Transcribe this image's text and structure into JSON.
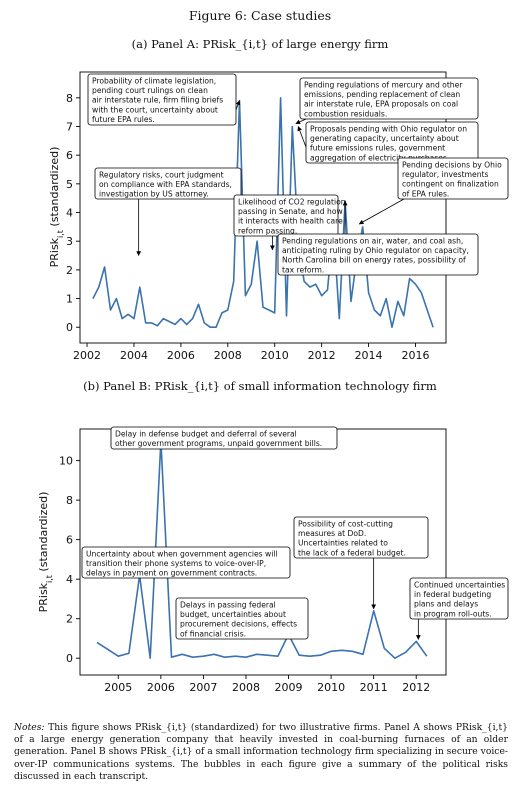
{
  "figure_title": "Figure 6: Case studies",
  "panel_a_title": "(a) Panel A: PRisk_{i,t} of large energy firm",
  "panel_b_title": "(b) Panel B: PRisk_{i,t} of small information technology firm",
  "notes_label": "Notes:",
  "notes_text": "This figure shows PRisk_{i,t} (standardized) for two illustrative firms. Panel A shows PRisk_{i,t} of a large energy generation company that heavily invested in coal-burning furnaces of an older generation. Panel B shows PRisk_{i,t} of a small information technology firm specializing in secure voice-over-IP communications systems. The bubbles in each figure give a summary of the political risks discussed in each transcript.",
  "colors": {
    "line": "#3b73ae",
    "axis": "#000000",
    "box_border": "#000000"
  },
  "chart_data": [
    {
      "type": "line",
      "ylabel": "PRisk_{i,t} (standardized)",
      "xlim": [
        2001.7,
        2017.3
      ],
      "ylim": [
        -0.55,
        8.9
      ],
      "xticks": [
        2002,
        2004,
        2006,
        2008,
        2010,
        2012,
        2014,
        2016
      ],
      "yticks": [
        0,
        1,
        2,
        3,
        4,
        5,
        6,
        7,
        8
      ],
      "series": [
        {
          "x": [
            2002.25,
            2002.5,
            2002.75,
            2003.0,
            2003.25,
            2003.5,
            2003.75,
            2004.0,
            2004.25,
            2004.5,
            2004.75,
            2005.0,
            2005.25,
            2005.5,
            2005.75,
            2006.0,
            2006.25,
            2006.5,
            2006.75,
            2007.0,
            2007.25,
            2007.5,
            2007.75,
            2008.0,
            2008.25,
            2008.5,
            2008.75,
            2009.0,
            2009.25,
            2009.5,
            2009.75,
            2010.0,
            2010.25,
            2010.5,
            2010.75,
            2011.0,
            2011.25,
            2011.5,
            2011.75,
            2012.0,
            2012.25,
            2012.5,
            2012.75,
            2013.0,
            2013.25,
            2013.5,
            2013.75,
            2014.0,
            2014.25,
            2014.5,
            2014.75,
            2015.0,
            2015.25,
            2015.5,
            2015.75,
            2016.0,
            2016.25,
            2016.5,
            2016.75
          ],
          "values": [
            1.0,
            1.4,
            2.1,
            0.6,
            1.0,
            0.3,
            0.45,
            0.3,
            1.4,
            0.15,
            0.15,
            0.05,
            0.3,
            0.2,
            0.1,
            0.3,
            0.1,
            0.3,
            0.8,
            0.15,
            0.0,
            0.0,
            0.5,
            0.6,
            1.6,
            7.9,
            1.1,
            1.5,
            3.0,
            0.7,
            0.6,
            0.5,
            8.0,
            0.4,
            7.0,
            3.0,
            1.6,
            1.4,
            1.5,
            1.1,
            1.3,
            3.5,
            0.3,
            4.4,
            0.9,
            2.4,
            3.5,
            1.2,
            0.6,
            0.4,
            1.0,
            0.0,
            0.9,
            0.4,
            1.7,
            1.5,
            1.2,
            0.6,
            0.0
          ]
        }
      ],
      "annotations": [
        {
          "lines": [
            "Probability of climate legislation,",
            "pending court rulings on clean",
            "air interstate rule, firm filing briefs",
            "with the court, uncertainty about",
            "future EPA rules."
          ],
          "target_x": 2008.5,
          "target_y": 7.9
        },
        {
          "lines": [
            "Pending regulations of mercury and other",
            "emissions, pending replacement of clean",
            "air interstate rule, EPA proposals on coal",
            "combustion residuals."
          ],
          "target_x": 2010.9,
          "target_y": 7.1
        },
        {
          "lines": [
            "Proposals pending with Ohio regulator on",
            "generating capacity, uncertainty about",
            "future emissions rules, government",
            "aggregation of electricity purchases."
          ],
          "target_x": 2011.0,
          "target_y": 7.0
        },
        {
          "lines": [
            "Regulatory risks, court judgment",
            "on compliance with EPA standards,",
            "investigation by US attorney."
          ],
          "target_x": 2004.2,
          "target_y": 2.5
        },
        {
          "lines": [
            "Pending decisions by Ohio",
            "regulator, investments",
            "contingent on finalization",
            "of EPA rules."
          ],
          "target_x": 2013.6,
          "target_y": 3.6
        },
        {
          "lines": [
            "Likelihood of CO2 regulation",
            "passing in Senate, and how",
            "it interacts with health care",
            "reform passing."
          ],
          "target_x": 2009.9,
          "target_y": 2.7
        },
        {
          "lines": [
            "Pending regulations on air, water, and coal ash,",
            "anticipating ruling by Ohio regulator on capacity,",
            "North Carolina bill on energy rates, possibility of",
            "tax reform."
          ],
          "target_x": 2013.0,
          "target_y": 4.4
        }
      ]
    },
    {
      "type": "line",
      "ylabel": "PRisk_{i,t} (standardized)",
      "xlim": [
        2004.1,
        2012.7
      ],
      "ylim": [
        -0.85,
        11.6
      ],
      "xticks": [
        2005,
        2006,
        2007,
        2008,
        2009,
        2010,
        2011,
        2012
      ],
      "yticks": [
        0,
        2,
        4,
        6,
        8,
        10
      ],
      "series": [
        {
          "x": [
            2004.5,
            2004.75,
            2005.0,
            2005.25,
            2005.5,
            2005.75,
            2006.0,
            2006.25,
            2006.5,
            2006.75,
            2007.0,
            2007.25,
            2007.5,
            2007.75,
            2008.0,
            2008.25,
            2008.5,
            2008.75,
            2009.0,
            2009.25,
            2009.5,
            2009.75,
            2010.0,
            2010.25,
            2010.5,
            2010.75,
            2011.0,
            2011.25,
            2011.5,
            2011.75,
            2012.0,
            2012.25
          ],
          "values": [
            0.8,
            0.45,
            0.1,
            0.25,
            4.2,
            0.0,
            11.0,
            0.05,
            0.2,
            0.05,
            0.1,
            0.2,
            0.05,
            0.1,
            0.05,
            0.2,
            0.15,
            0.1,
            1.2,
            0.15,
            0.1,
            0.15,
            0.35,
            0.4,
            0.35,
            0.2,
            2.4,
            0.5,
            0.0,
            0.3,
            0.85,
            0.1
          ]
        }
      ],
      "annotations": [
        {
          "lines": [
            "Delay in defense budget and deferral of several",
            "other government programs, unpaid government bills."
          ],
          "target_x": 2006.05,
          "target_y": 10.9
        },
        {
          "lines": [
            "Possibility of cost-cutting",
            "measures at DoD.",
            "Uncertainties related to",
            "the lack of a federal budget."
          ],
          "target_x": 2011.0,
          "target_y": 2.5
        },
        {
          "lines": [
            "Uncertainty about when government agencies will",
            "transition their phone systems to voice-over-IP,",
            "delays in payment on government contracts."
          ],
          "target_x": 2005.5,
          "target_y": 4.3
        },
        {
          "lines": [
            "Continued uncertainties",
            "in federal budgeting",
            "plans and delays",
            "in program roll-outs."
          ],
          "target_x": 2012.05,
          "target_y": 0.95
        },
        {
          "lines": [
            "Delays in passing federal",
            "budget, uncertainties about",
            "procurement decisions, effects",
            "of financial crisis."
          ],
          "target_x": 2009.0,
          "target_y": 1.3
        }
      ]
    }
  ]
}
